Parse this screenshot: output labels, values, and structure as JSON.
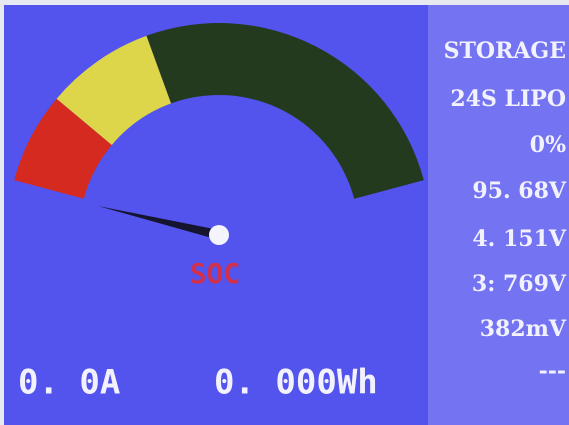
{
  "gauge": {
    "label": "SOC"
  },
  "footer": {
    "current": "0. 0A",
    "energy": "0. 000Wh"
  },
  "info": [
    "STORAGE",
    "24S LIPO",
    "0%",
    "95. 68V",
    "4. 151V",
    "3: 769V",
    "382mV",
    "---"
  ]
}
